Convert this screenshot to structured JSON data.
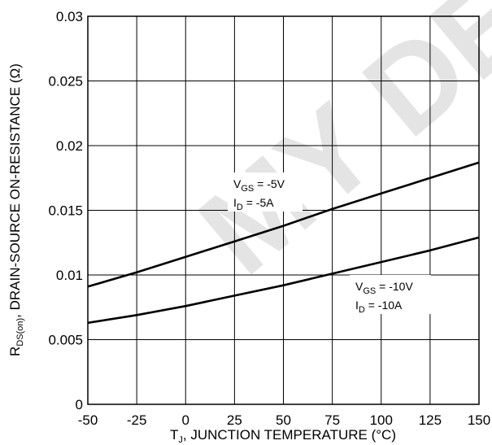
{
  "chart_data": {
    "type": "line",
    "xlabel": "T J, JUNCTION TEMPERATURE (°C)",
    "ylabel": "RDS(on), DRAIN-SOURCE ON-RESISTANCE (Ω)",
    "xlim": [
      -50,
      150
    ],
    "ylim": [
      0,
      0.03
    ],
    "x_ticks": [
      "-50",
      "-25",
      "0",
      "25",
      "50",
      "75",
      "100",
      "125",
      "150"
    ],
    "y_ticks": [
      "0",
      "0.005",
      "0.01",
      "0.015",
      "0.02",
      "0.025",
      "0.03"
    ],
    "grid": true,
    "series": [
      {
        "name": "VGS = -5V, ID = -5A",
        "x": [
          -50,
          -25,
          0,
          25,
          50,
          75,
          100,
          125,
          150
        ],
        "y": [
          0.0091,
          0.0102,
          0.0114,
          0.0126,
          0.0138,
          0.0151,
          0.0163,
          0.0175,
          0.0187
        ]
      },
      {
        "name": "VGS = -10V, ID = -10A",
        "x": [
          -50,
          -25,
          0,
          25,
          50,
          75,
          100,
          125,
          150
        ],
        "y": [
          0.0063,
          0.0069,
          0.0076,
          0.0084,
          0.0092,
          0.0101,
          0.011,
          0.0119,
          0.0129
        ]
      }
    ],
    "annotations": [
      {
        "vgs_main": "V",
        "vgs_sub": "GS",
        "vgs_val": " = -5V",
        "id_main": "I",
        "id_sub": "D",
        "id_val": " = -5A"
      },
      {
        "vgs_main": "V",
        "vgs_sub": "GS",
        "vgs_val": " = -10V",
        "id_main": "I",
        "id_sub": "D",
        "id_val": " = -10A"
      }
    ],
    "xlabel_parts": {
      "t": "T",
      "t_sub": "J",
      "rest": ", JUNCTION TEMPERATURE (°C)"
    },
    "ylabel_parts": {
      "r": "R",
      "r_sub": "DS(on)",
      "rest": ", DRAIN-SOURCE ON-RESISTANCE (Ω)"
    },
    "watermark": "MY DESIGN"
  }
}
